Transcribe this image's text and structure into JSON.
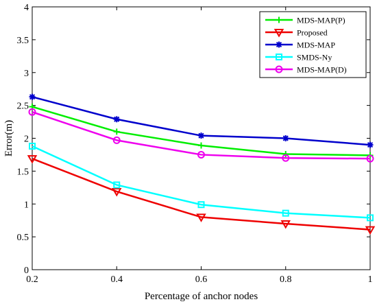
{
  "chart_data": {
    "type": "line",
    "title": "",
    "xlabel": "Percentage of anchor nodes",
    "ylabel": "Error(m)",
    "xlim": [
      0.2,
      1
    ],
    "ylim": [
      0,
      4
    ],
    "x": [
      0.2,
      0.4,
      0.6,
      0.8,
      1
    ],
    "xticks": [
      "0.2",
      "0.4",
      "0.6",
      "0.8",
      "1"
    ],
    "yticks": [
      "0",
      "0.5",
      "1",
      "1.5",
      "2",
      "2.5",
      "3",
      "3.5",
      "4"
    ],
    "grid": false,
    "legend_position": "top-right",
    "series": [
      {
        "name": "MDS-MAP(P)",
        "color": "#00ee00",
        "marker": "plus",
        "values": [
          2.48,
          2.1,
          1.89,
          1.76,
          1.74
        ]
      },
      {
        "name": "Proposed",
        "color": "#ee0000",
        "marker": "triangle-down",
        "values": [
          1.69,
          1.19,
          0.8,
          0.7,
          0.61
        ]
      },
      {
        "name": "MDS-MAP",
        "color": "#0000cc",
        "marker": "star",
        "values": [
          2.63,
          2.29,
          2.04,
          2.0,
          1.9
        ]
      },
      {
        "name": "SMDS-Ny",
        "color": "#00ffff",
        "marker": "square",
        "values": [
          1.88,
          1.29,
          0.99,
          0.86,
          0.79
        ]
      },
      {
        "name": "MDS-MAP(D)",
        "color": "#ee00ee",
        "marker": "circle",
        "values": [
          2.4,
          1.97,
          1.75,
          1.7,
          1.69
        ]
      }
    ]
  }
}
